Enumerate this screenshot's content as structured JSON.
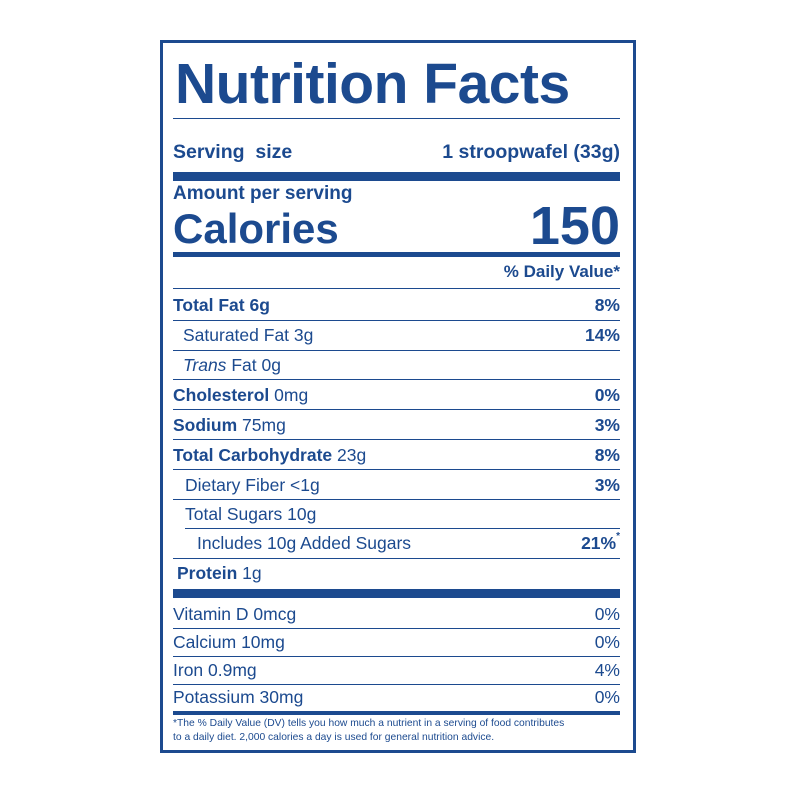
{
  "title": "Nutrition Facts",
  "serving": {
    "label": "Serving  size",
    "value": "1 stroopwafel (33g)"
  },
  "amount_per_serving": "Amount per serving",
  "calories": {
    "label": "Calories",
    "value": "150"
  },
  "dv_header": "% Daily Value*",
  "nutrients": [
    {
      "name": "Total Fat",
      "amount": "6g",
      "dv": "8%"
    },
    {
      "name": "Saturated Fat 3g",
      "dv": "14%"
    },
    {
      "name_italic": "Trans",
      "name": "Fat 0g"
    },
    {
      "name": "Cholesterol",
      "amount": "0mg",
      "dv": "0%"
    },
    {
      "name": "Sodium",
      "amount": "75mg",
      "dv": "3%"
    },
    {
      "name": "Total Carbohydrate",
      "amount": "23g",
      "dv": "8%"
    },
    {
      "name": "Dietary Fiber <1g",
      "dv": "3%"
    },
    {
      "name": "Total Sugars 10g"
    },
    {
      "name": "Includes 10g Added Sugars",
      "dv": "21%",
      "dv_mark": "*"
    },
    {
      "name": "Protein",
      "amount": "1g"
    }
  ],
  "vitamins": [
    {
      "name": "Vitamin D 0mcg",
      "dv": "0%"
    },
    {
      "name": "Calcium 10mg",
      "dv": "0%"
    },
    {
      "name": "Iron 0.9mg",
      "dv": "4%"
    },
    {
      "name": "Potassium 30mg",
      "dv": "0%"
    }
  ],
  "footnote_line1": "*The % Daily Value (DV) tells you how much a nutrient in a serving of food contributes",
  "footnote_line2": "to a daily diet. 2,000 calories a day is used for general nutrition advice.",
  "colors": {
    "ink": "#1c4a8f",
    "background": "#ffffff"
  }
}
